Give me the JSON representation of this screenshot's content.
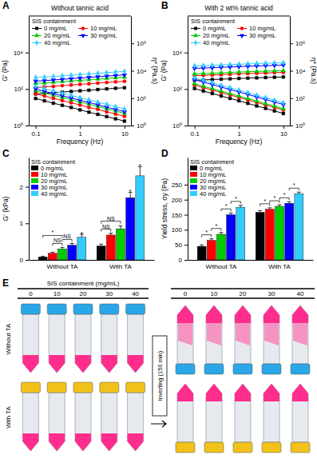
{
  "chart_data": [
    {
      "panel_label": "A",
      "type": "line",
      "title": "Without tannic acid",
      "x_label": "Frequency (Hz)",
      "y_label": "G' (Pa)",
      "y2_label": "η* (Pa.s)",
      "log": true,
      "legend_title": "SIS containment",
      "legend": "top left",
      "x": [
        0.1,
        0.158,
        0.251,
        0.398,
        0.631,
        1,
        1.585,
        2.512,
        3.981,
        6.31,
        10
      ],
      "xlim": [
        0.07,
        14
      ],
      "xticks": [
        0.1,
        1,
        10
      ],
      "ylim": [
        1,
        1000000
      ],
      "yticks": [
        {
          "value": 1,
          "label": "10⁰"
        },
        {
          "value": 100,
          "label": "10²"
        },
        {
          "value": 10000,
          "label": "10⁴"
        }
      ],
      "y2lim": [
        1,
        100000000
      ],
      "y2ticks": [
        {
          "value": 1,
          "label": "10⁰"
        },
        {
          "value": 100,
          "label": "10²"
        },
        {
          "value": 10000,
          "label": "10⁴"
        },
        {
          "value": 1000000,
          "label": "10⁶"
        }
      ],
      "series": [
        {
          "name": "0 mg/mL",
          "color": "#000000",
          "marker": "square",
          "values": [
            54,
            58,
            62,
            68,
            74,
            80,
            86,
            94,
            102,
            110,
            118
          ]
        },
        {
          "name": "10 mg/mL",
          "color": "#ff0000",
          "marker": "circle",
          "values": [
            122,
            130,
            140,
            153,
            166,
            180,
            194,
            211,
            229,
            248,
            266
          ]
        },
        {
          "name": "20 mg/mL",
          "color": "#00cc00",
          "marker": "triangle",
          "values": [
            204,
            216,
            234,
            255,
            276,
            300,
            324,
            351,
            381,
            414,
            444
          ]
        },
        {
          "name": "30 mg/mL",
          "color": "#0000ff",
          "marker": "triangle-down",
          "values": [
            272,
            288,
            312,
            340,
            368,
            400,
            432,
            468,
            508,
            552,
            592
          ]
        },
        {
          "name": "40 mg/mL",
          "color": "#33ccff",
          "marker": "diamond",
          "values": [
            422,
            446,
            484,
            527,
            570,
            620,
            670,
            725,
            787,
            856,
            918
          ]
        },
        {
          "name": "0 mg/mL",
          "color": "#000000",
          "marker": "square",
          "axis": "y2",
          "values": [
            95,
            64,
            43,
            30,
            21,
            14,
            9.5,
            6.6,
            4.5,
            3.1,
            2.1
          ]
        },
        {
          "name": "10 mg/mL",
          "color": "#ff0000",
          "marker": "circle",
          "axis": "y2",
          "values": [
            213,
            144,
            97,
            67,
            46,
            32,
            21,
            15,
            10,
            6.9,
            4.7
          ]
        },
        {
          "name": "20 mg/mL",
          "color": "#00cc00",
          "marker": "triangle",
          "axis": "y2",
          "values": [
            355,
            240,
            162,
            112,
            77,
            53,
            36,
            25,
            17,
            11.4,
            7.8
          ]
        },
        {
          "name": "30 mg/mL",
          "color": "#0000ff",
          "marker": "triangle-down",
          "axis": "y2",
          "values": [
            473,
            320,
            216,
            150,
            103,
            70,
            48,
            33,
            22,
            15,
            10.4
          ]
        },
        {
          "name": "40 mg/mL",
          "color": "#33ccff",
          "marker": "diamond",
          "axis": "y2",
          "values": [
            733,
            497,
            335,
            232,
            159,
            109,
            74,
            51,
            35,
            24,
            16
          ]
        }
      ]
    },
    {
      "panel_label": "B",
      "type": "line",
      "title": "With 2 wt% tannic acid",
      "x_label": "Frequency (Hz)",
      "y_label": "G' (Pa)",
      "y2_label": "η* (Pa.s)",
      "log": true,
      "legend_title": "SIS containment",
      "legend": "top left",
      "x": [
        0.1,
        0.158,
        0.251,
        0.398,
        0.631,
        1,
        1.585,
        2.512,
        3.981,
        6.31,
        10
      ],
      "xlim": [
        0.07,
        14
      ],
      "xticks": [
        0.1,
        1,
        10
      ],
      "ylim": [
        1,
        1000000
      ],
      "yticks": [
        {
          "value": 1,
          "label": "10⁰"
        },
        {
          "value": 100,
          "label": "10²"
        },
        {
          "value": 10000,
          "label": "10⁴"
        }
      ],
      "y2lim": [
        1,
        100000000
      ],
      "y2ticks": [
        {
          "value": 1,
          "label": "10⁰"
        },
        {
          "value": 100,
          "label": "10²"
        },
        {
          "value": 10000,
          "label": "10⁴"
        },
        {
          "value": 1000000,
          "label": "10⁶"
        }
      ],
      "series": [
        {
          "name": "0 mg/mL",
          "color": "#000000",
          "marker": "square",
          "values": [
            304,
            315,
            331,
            346,
            361,
            380,
            395,
            410,
            426,
            441,
            456
          ]
        },
        {
          "name": "10 mg/mL",
          "color": "#ff0000",
          "marker": "circle",
          "values": [
            544,
            564,
            592,
            619,
            646,
            680,
            707,
            734,
            762,
            789,
            816
          ]
        },
        {
          "name": "20 mg/mL",
          "color": "#00cc00",
          "marker": "triangle",
          "values": [
            680,
            706,
            740,
            774,
            808,
            850,
            884,
            918,
            952,
            986,
            1020
          ]
        },
        {
          "name": "30 mg/mL",
          "color": "#0000ff",
          "marker": "triangle-down",
          "values": [
            1360,
            1411,
            1479,
            1547,
            1615,
            1700,
            1768,
            1836,
            1904,
            1972,
            2040
          ]
        },
        {
          "name": "40 mg/mL",
          "color": "#33ccff",
          "marker": "diamond",
          "values": [
            1840,
            1909,
            2001,
            2093,
            2185,
            2300,
            2392,
            2484,
            2576,
            2668,
            2760
          ]
        },
        {
          "name": "0 mg/mL",
          "color": "#000000",
          "marker": "square",
          "axis": "y2",
          "values": [
            508,
            332,
            220,
            145,
            96,
            64,
            42,
            27,
            18,
            11.7,
            7.6
          ]
        },
        {
          "name": "10 mg/mL",
          "color": "#ff0000",
          "marker": "circle",
          "axis": "y2",
          "values": [
            909,
            594,
            394,
            260,
            171,
            114,
            74,
            49,
            32,
            21,
            13.6
          ]
        },
        {
          "name": "20 mg/mL",
          "color": "#00cc00",
          "marker": "triangle",
          "axis": "y2",
          "values": [
            1138,
            744,
            493,
            325,
            214,
            142,
            93,
            61,
            40,
            26,
            17
          ]
        },
        {
          "name": "30 mg/mL",
          "color": "#0000ff",
          "marker": "triangle-down",
          "axis": "y2",
          "values": [
            2271,
            1484,
            983,
            648,
            427,
            284,
            186,
            122,
            80,
            52,
            34
          ]
        },
        {
          "name": "40 mg/mL",
          "color": "#33ccff",
          "marker": "diamond",
          "axis": "y2",
          "values": [
            3073,
            2009,
            1331,
            877,
            578,
            384,
            252,
            165,
            108,
            71,
            46
          ]
        }
      ]
    },
    {
      "panel_label": "C",
      "type": "bar",
      "y_label": "G' (kPa)",
      "legend_title": "SIS containment",
      "legend": "top left",
      "categories": [
        "Without TA",
        "With TA"
      ],
      "ylim": [
        0,
        2.8
      ],
      "yticks": [
        0,
        1,
        2
      ],
      "series": [
        {
          "name": "0 mg/mL",
          "color": "#000000",
          "values": [
            0.08,
            0.38
          ],
          "errors": [
            0.02,
            0.05
          ]
        },
        {
          "name": "10 mg/mL",
          "color": "#ff0000",
          "values": [
            0.18,
            0.68
          ],
          "errors": [
            0.03,
            0.05
          ]
        },
        {
          "name": "20 mg/mL",
          "color": "#00cc00",
          "values": [
            0.3,
            0.85
          ],
          "errors": [
            0.04,
            0.08
          ]
        },
        {
          "name": "30 mg/mL",
          "color": "#0000ff",
          "values": [
            0.4,
            1.7
          ],
          "errors": [
            0.05,
            0.15
          ]
        },
        {
          "name": "40 mg/mL",
          "color": "#33ccff",
          "values": [
            0.62,
            2.3
          ],
          "errors": [
            0.08,
            0.25
          ]
        }
      ],
      "annotations": [
        {
          "text": "NS",
          "category": 0,
          "from": 1,
          "to": 2
        },
        {
          "text": "NS",
          "category": 0,
          "from": 2,
          "to": 3
        },
        {
          "text": "*",
          "category": 0,
          "from": 0,
          "to": 2
        },
        {
          "text": "*",
          "category": 0,
          "from": 4,
          "to": 4
        },
        {
          "text": "NS",
          "category": 1,
          "from": 0,
          "to": 1
        },
        {
          "text": "NS",
          "category": 1,
          "from": 0,
          "to": 2
        },
        {
          "text": "*",
          "category": 1,
          "from": 3,
          "to": 3
        },
        {
          "text": "*",
          "category": 1,
          "from": 4,
          "to": 4
        }
      ]
    },
    {
      "panel_label": "D",
      "type": "bar",
      "y_label": "Yield stress, σy (Pa)",
      "legend_title": "SIS containment",
      "legend": "top left",
      "categories": [
        "Without TA",
        "With TA"
      ],
      "ylim": [
        0,
        340
      ],
      "yticks": [
        0,
        50,
        100,
        150,
        200,
        250
      ],
      "series": [
        {
          "name": "0 mg/mL",
          "color": "#000000",
          "values": [
            45,
            158
          ],
          "errors": [
            5,
            6
          ]
        },
        {
          "name": "10 mg/mL",
          "color": "#ff0000",
          "values": [
            65,
            168
          ],
          "errors": [
            5,
            5
          ]
        },
        {
          "name": "20 mg/mL",
          "color": "#00cc00",
          "values": [
            85,
            178
          ],
          "errors": [
            6,
            5
          ]
        },
        {
          "name": "30 mg/mL",
          "color": "#0000ff",
          "values": [
            150,
            188
          ],
          "errors": [
            6,
            5
          ]
        },
        {
          "name": "40 mg/mL",
          "color": "#33ccff",
          "values": [
            175,
            220
          ],
          "errors": [
            6,
            5
          ]
        }
      ],
      "annotations": [
        {
          "text": "*",
          "category": 0,
          "from": 0,
          "to": 1
        },
        {
          "text": "*",
          "category": 0,
          "from": 1,
          "to": 2
        },
        {
          "text": "*",
          "category": 0,
          "from": 2,
          "to": 3
        },
        {
          "text": "*",
          "category": 0,
          "from": 3,
          "to": 4
        },
        {
          "text": "*",
          "category": 1,
          "from": 0,
          "to": 1
        },
        {
          "text": "*",
          "category": 1,
          "from": 1,
          "to": 2
        },
        {
          "text": "*",
          "category": 1,
          "from": 2,
          "to": 3
        },
        {
          "text": "*",
          "category": 1,
          "from": 3,
          "to": 4
        }
      ]
    }
  ],
  "panel_e": {
    "panel_label": "E",
    "title": "SIS containment (mg/mL)",
    "concentrations": [
      "0",
      "10",
      "20",
      "30",
      "40"
    ],
    "rows": [
      "Without TA",
      "With TA"
    ],
    "arrow_label": "Inverting (150 min)"
  }
}
